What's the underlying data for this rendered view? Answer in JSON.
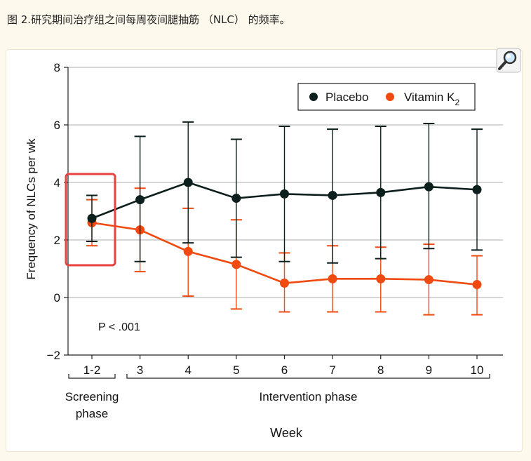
{
  "caption": "图 2.研究期间治疗组之间每周夜间腿抽筋 （NLC） 的频率。",
  "zoom_icon": "magnifier-icon",
  "chart_data": {
    "type": "line",
    "ylabel": "Frequency of NLCs per wk",
    "xlabel": "Week",
    "ylim": [
      -2,
      8
    ],
    "yticks": [
      -2,
      0,
      2,
      4,
      6,
      8
    ],
    "grid": "horizontal",
    "legend_position": "top-right",
    "categories": [
      "1-2",
      "3",
      "4",
      "5",
      "6",
      "7",
      "8",
      "9",
      "10"
    ],
    "phases": [
      {
        "label_line1": "Screening",
        "label_line2": "phase",
        "start": 0,
        "end": 0
      },
      {
        "label_line1": "Intervention phase",
        "label_line2": "",
        "start": 1,
        "end": 8
      }
    ],
    "annotation": "P < .001",
    "series": [
      {
        "name": "Placebo",
        "color": "#0d1f1d",
        "values": [
          2.75,
          3.4,
          4.0,
          3.45,
          3.6,
          3.55,
          3.65,
          3.85,
          3.75
        ],
        "upper": [
          3.55,
          5.6,
          6.1,
          5.5,
          5.95,
          5.85,
          5.95,
          6.05,
          5.85
        ],
        "lower": [
          1.95,
          1.25,
          1.9,
          1.4,
          1.25,
          1.2,
          1.35,
          1.7,
          1.65
        ]
      },
      {
        "name": "Vitamin K",
        "name_subscript": "2",
        "color": "#ef4a0f",
        "values": [
          2.6,
          2.35,
          1.6,
          1.15,
          0.5,
          0.65,
          0.65,
          0.62,
          0.45
        ],
        "upper": [
          3.4,
          3.8,
          3.1,
          2.7,
          1.55,
          1.8,
          1.75,
          1.85,
          1.45
        ],
        "lower": [
          1.8,
          0.9,
          0.05,
          -0.4,
          -0.5,
          -0.5,
          -0.5,
          -0.6,
          -0.6
        ]
      }
    ],
    "highlight_color": "#e8423f"
  }
}
